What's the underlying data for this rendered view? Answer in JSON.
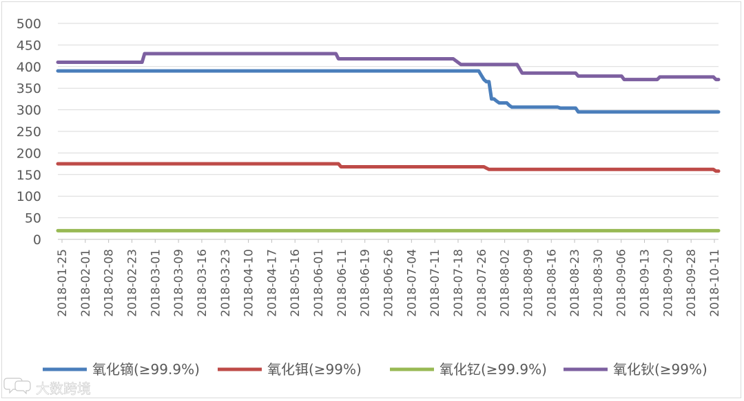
{
  "chart_data": {
    "type": "line",
    "title": "",
    "xlabel": "",
    "ylabel": "",
    "ylim": [
      0,
      500
    ],
    "y_ticks": [
      0,
      50,
      100,
      150,
      200,
      250,
      300,
      350,
      400,
      450,
      500
    ],
    "grid": "horizontal",
    "legend_position": "bottom",
    "x_tick_labels": [
      "2018-01-25",
      "2018-02-01",
      "2018-02-08",
      "2018-02-23",
      "2018-03-01",
      "2018-03-09",
      "2018-03-16",
      "2018-03-23",
      "2018-04-10",
      "2018-04-17",
      "2018-05-16",
      "2018-06-01",
      "2018-06-11",
      "2018-06-19",
      "2018-06-26",
      "2018-07-04",
      "2018-07-11",
      "2018-07-18",
      "2018-07-26",
      "2018-08-02",
      "2018-08-09",
      "2018-08-16",
      "2018-08-23",
      "2018-08-30",
      "2018-09-06",
      "2018-09-13",
      "2018-09-20",
      "2018-09-28",
      "2018-10-11"
    ],
    "series": [
      {
        "name": "氧化镝(≥99.9%)",
        "color": "#4a7ebb",
        "points": [
          [
            "2018-01-25",
            390
          ],
          [
            "2018-07-09",
            390
          ],
          [
            "2018-07-10",
            380
          ],
          [
            "2018-07-11",
            370
          ],
          [
            "2018-07-12",
            365
          ],
          [
            "2018-07-13",
            365
          ],
          [
            "2018-07-14",
            325
          ],
          [
            "2018-07-15",
            325
          ],
          [
            "2018-07-16",
            320
          ],
          [
            "2018-07-17",
            316
          ],
          [
            "2018-07-20",
            316
          ],
          [
            "2018-07-21",
            310
          ],
          [
            "2018-07-22",
            306
          ],
          [
            "2018-08-09",
            306
          ],
          [
            "2018-08-10",
            304
          ],
          [
            "2018-08-16",
            304
          ],
          [
            "2018-08-17",
            295
          ],
          [
            "2018-10-11",
            295
          ]
        ]
      },
      {
        "name": "氧化铒(≥99%)",
        "color": "#be4b48",
        "points": [
          [
            "2018-01-25",
            175
          ],
          [
            "2018-05-15",
            175
          ],
          [
            "2018-05-16",
            168
          ],
          [
            "2018-07-11",
            168
          ],
          [
            "2018-07-13",
            162
          ],
          [
            "2018-10-09",
            162
          ],
          [
            "2018-10-10",
            158
          ],
          [
            "2018-10-11",
            158
          ]
        ]
      },
      {
        "name": "氧化钇(≥99.9%)",
        "color": "#98b954",
        "points": [
          [
            "2018-01-25",
            20
          ],
          [
            "2018-10-11",
            20
          ]
        ]
      },
      {
        "name": "氧化钬(≥99%)",
        "color": "#7d60a0",
        "points": [
          [
            "2018-01-25",
            410
          ],
          [
            "2018-02-27",
            410
          ],
          [
            "2018-02-28",
            430
          ],
          [
            "2018-05-14",
            430
          ],
          [
            "2018-05-15",
            418
          ],
          [
            "2018-06-29",
            418
          ],
          [
            "2018-07-02",
            405
          ],
          [
            "2018-07-24",
            405
          ],
          [
            "2018-07-26",
            385
          ],
          [
            "2018-08-16",
            385
          ],
          [
            "2018-08-17",
            378
          ],
          [
            "2018-09-03",
            378
          ],
          [
            "2018-09-04",
            370
          ],
          [
            "2018-09-17",
            370
          ],
          [
            "2018-09-18",
            376
          ],
          [
            "2018-10-09",
            376
          ],
          [
            "2018-10-10",
            370
          ],
          [
            "2018-10-11",
            370
          ]
        ]
      }
    ]
  },
  "watermark": {
    "icon": "speech-bubble-logo-icon",
    "text": "大数跨境"
  }
}
